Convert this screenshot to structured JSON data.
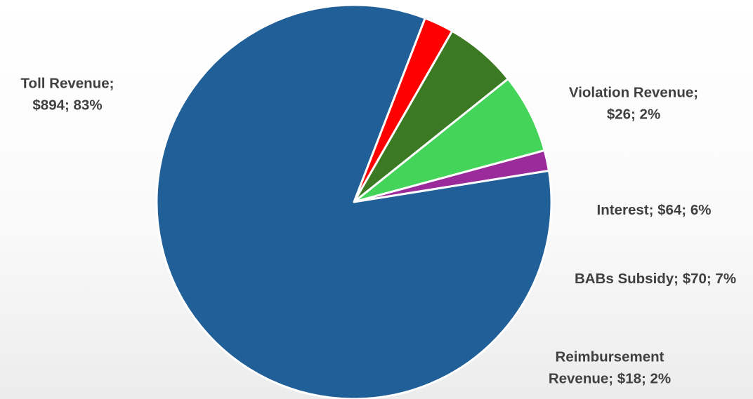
{
  "chart_data": {
    "type": "pie",
    "slices": [
      {
        "label": "Violation Revenue",
        "value": 26,
        "percent": 2,
        "color": "#ff0000",
        "label_lines": [
          "Violation Revenue;",
          "$26; 2%"
        ]
      },
      {
        "label": "Interest",
        "value": 64,
        "percent": 6,
        "color": "#3b7a23",
        "label_lines": [
          "Interest; $64; 6%"
        ]
      },
      {
        "label": "BABs Subsidy",
        "value": 70,
        "percent": 7,
        "color": "#45d45a",
        "label_lines": [
          "BABs Subsidy; $70; 7%"
        ]
      },
      {
        "label": "Reimbursement Revenue",
        "value": 18,
        "percent": 2,
        "color": "#9b2a9a",
        "label_lines": [
          "Reimbursement",
          "Revenue; $18; 2%"
        ]
      },
      {
        "label": "Toll Revenue",
        "value": 894,
        "percent": 83,
        "color": "#215f99",
        "label_lines": [
          "Toll Revenue;",
          "$894; 83%"
        ]
      }
    ]
  }
}
